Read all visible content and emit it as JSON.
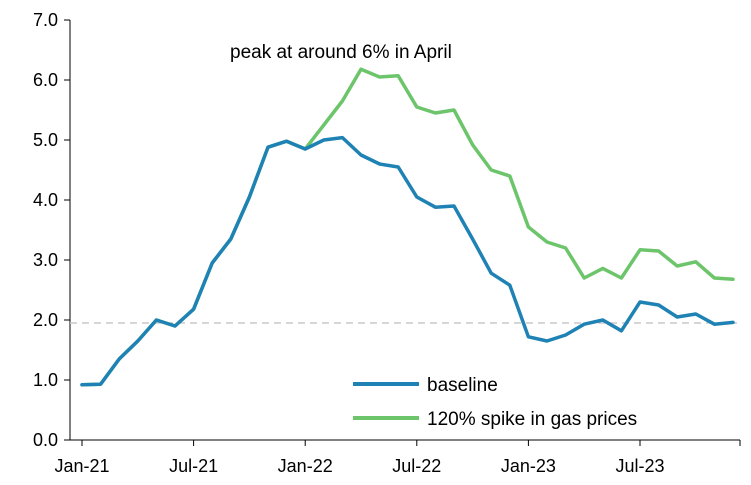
{
  "chart_data": {
    "type": "line",
    "title": "",
    "xlabel": "",
    "ylabel": "",
    "xlim": [
      "2021-01",
      "2023-12"
    ],
    "ylim": [
      0,
      7
    ],
    "x_ticks": [
      "Jan-21",
      "Jul-21",
      "Jan-22",
      "Jul-22",
      "Jan-23",
      "Jul-23"
    ],
    "y_ticks": [
      "0.0",
      "1.0",
      "2.0",
      "3.0",
      "4.0",
      "5.0",
      "6.0",
      "7.0"
    ],
    "grid": false,
    "legend_position": "bottom-right",
    "annotation": "peak at around 6% in April",
    "reference_line": {
      "y": 1.95,
      "style": "dashed",
      "color": "#c8c8c8"
    },
    "x": [
      "2021-01",
      "2021-02",
      "2021-03",
      "2021-04",
      "2021-05",
      "2021-06",
      "2021-07",
      "2021-08",
      "2021-09",
      "2021-10",
      "2021-11",
      "2021-12",
      "2022-01",
      "2022-02",
      "2022-03",
      "2022-04",
      "2022-05",
      "2022-06",
      "2022-07",
      "2022-08",
      "2022-09",
      "2022-10",
      "2022-11",
      "2022-12",
      "2023-01",
      "2023-02",
      "2023-03",
      "2023-04",
      "2023-05",
      "2023-06",
      "2023-07",
      "2023-08",
      "2023-09",
      "2023-10",
      "2023-11",
      "2023-12"
    ],
    "series": [
      {
        "name": "baseline",
        "color": "#1f82b4",
        "values": [
          0.92,
          0.93,
          1.35,
          1.65,
          2.0,
          1.9,
          2.18,
          2.95,
          3.35,
          4.05,
          4.88,
          4.98,
          4.85,
          5.0,
          5.04,
          4.75,
          4.6,
          4.55,
          4.05,
          3.88,
          3.9,
          3.35,
          2.78,
          2.58,
          1.72,
          1.65,
          1.75,
          1.93,
          2.0,
          1.82,
          2.3,
          2.25,
          2.05,
          2.1,
          1.93,
          1.96
        ]
      },
      {
        "name": "120% spike in gas prices",
        "color": "#6cc56a",
        "values": [
          0.92,
          0.93,
          1.35,
          1.65,
          2.0,
          1.9,
          2.18,
          2.95,
          3.35,
          4.05,
          4.88,
          4.98,
          4.85,
          5.25,
          5.65,
          6.18,
          6.05,
          6.07,
          5.55,
          5.45,
          5.5,
          4.92,
          4.5,
          4.4,
          3.55,
          3.3,
          3.2,
          2.7,
          2.86,
          2.7,
          3.17,
          3.15,
          2.9,
          2.97,
          2.7,
          2.68
        ]
      }
    ]
  }
}
